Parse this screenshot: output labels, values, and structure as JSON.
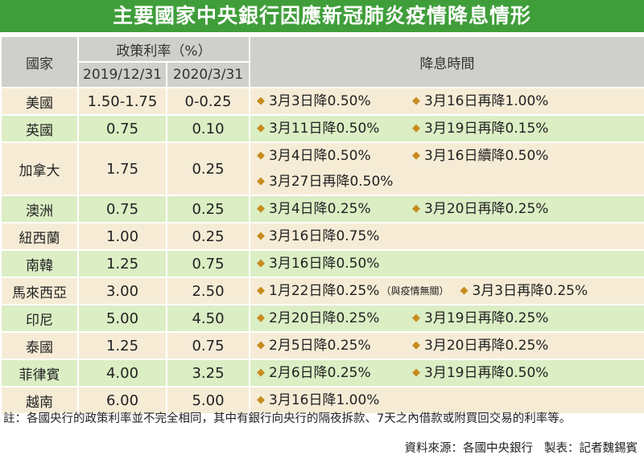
{
  "title": "主要國家中央銀行因應新冠肺炎疫情降息情形",
  "headers": {
    "country": "國家",
    "policy_rate": "政策利率（%）",
    "date_2019": "2019/12/31",
    "date_2020": "2020/3/31",
    "cut_time": "降息時間"
  },
  "rows": [
    {
      "country": "美國",
      "rate_2019": "1.50-1.75",
      "rate_2020": "0-0.25",
      "lines": [
        [
          "3月3日降0.50%",
          "3月16日再降1.00%"
        ]
      ]
    },
    {
      "country": "英國",
      "rate_2019": "0.75",
      "rate_2020": "0.10",
      "lines": [
        [
          "3月11日降0.50%",
          "3月19日再降0.15%"
        ]
      ]
    },
    {
      "country": "加拿大",
      "rate_2019": "1.75",
      "rate_2020": "0.25",
      "lines": [
        [
          "3月4日降0.50%",
          "3月16日續降0.50%"
        ],
        [
          "3月27日再降0.50%"
        ]
      ]
    },
    {
      "country": "澳洲",
      "rate_2019": "0.75",
      "rate_2020": "0.25",
      "lines": [
        [
          "3月4日降0.25%",
          "3月20日再降0.25%"
        ]
      ]
    },
    {
      "country": "紐西蘭",
      "rate_2019": "1.00",
      "rate_2020": "0.25",
      "lines": [
        [
          "3月16日降0.75%"
        ]
      ]
    },
    {
      "country": "南韓",
      "rate_2019": "1.25",
      "rate_2020": "0.75",
      "lines": [
        [
          "3月16日降0.50%"
        ]
      ]
    },
    {
      "country": "馬來西亞",
      "rate_2019": "3.00",
      "rate_2020": "2.50",
      "lines": [
        [
          "1月22日降0.25%",
          "3月3日再降0.25%"
        ]
      ],
      "note": "（與疫情無關）"
    },
    {
      "country": "印尼",
      "rate_2019": "5.00",
      "rate_2020": "4.50",
      "lines": [
        [
          "2月20日降0.25%",
          "3月19日再降0.25%"
        ]
      ]
    },
    {
      "country": "泰國",
      "rate_2019": "1.25",
      "rate_2020": "0.75",
      "lines": [
        [
          "2月5日降0.25%",
          "3月20日再降0.25%"
        ]
      ]
    },
    {
      "country": "菲律賓",
      "rate_2019": "4.00",
      "rate_2020": "3.25",
      "lines": [
        [
          "2月6日降0.25%",
          "3月19日再降0.50%"
        ]
      ]
    },
    {
      "country": "越南",
      "rate_2019": "6.00",
      "rate_2020": "5.00",
      "lines": [
        [
          "3月16日降1.00%"
        ]
      ]
    }
  ],
  "footnote": "註：各國央行的政策利率並不完全相同，其中有銀行向央行的隔夜拆款、7天之內借款或附買回交易的利率等。",
  "source": "資料來源：各國中央銀行",
  "credit": "製表：記者魏錫賓",
  "colors": {
    "title_bg": "#3f9e3a",
    "header_bg": "#cfd0cc",
    "row_odd": "#f6ecd6",
    "row_even": "#dbeec4",
    "diamond": "#c88b1e"
  }
}
